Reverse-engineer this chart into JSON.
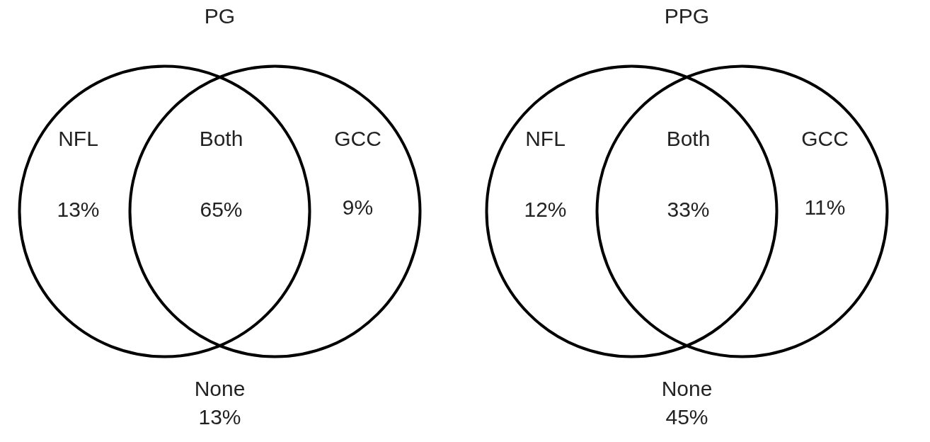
{
  "chart_data": [
    {
      "type": "other",
      "title": "PG",
      "categories": [
        "NFL",
        "Both",
        "GCC",
        "None"
      ],
      "values": [
        13,
        65,
        9,
        13
      ],
      "value_labels": [
        "13%",
        "65%",
        "9%",
        "13%"
      ]
    },
    {
      "type": "other",
      "title": "PPG",
      "categories": [
        "NFL",
        "Both",
        "GCC",
        "None"
      ],
      "values": [
        12,
        33,
        11,
        45
      ],
      "value_labels": [
        "12%",
        "33%",
        "11%",
        "45%"
      ]
    }
  ]
}
